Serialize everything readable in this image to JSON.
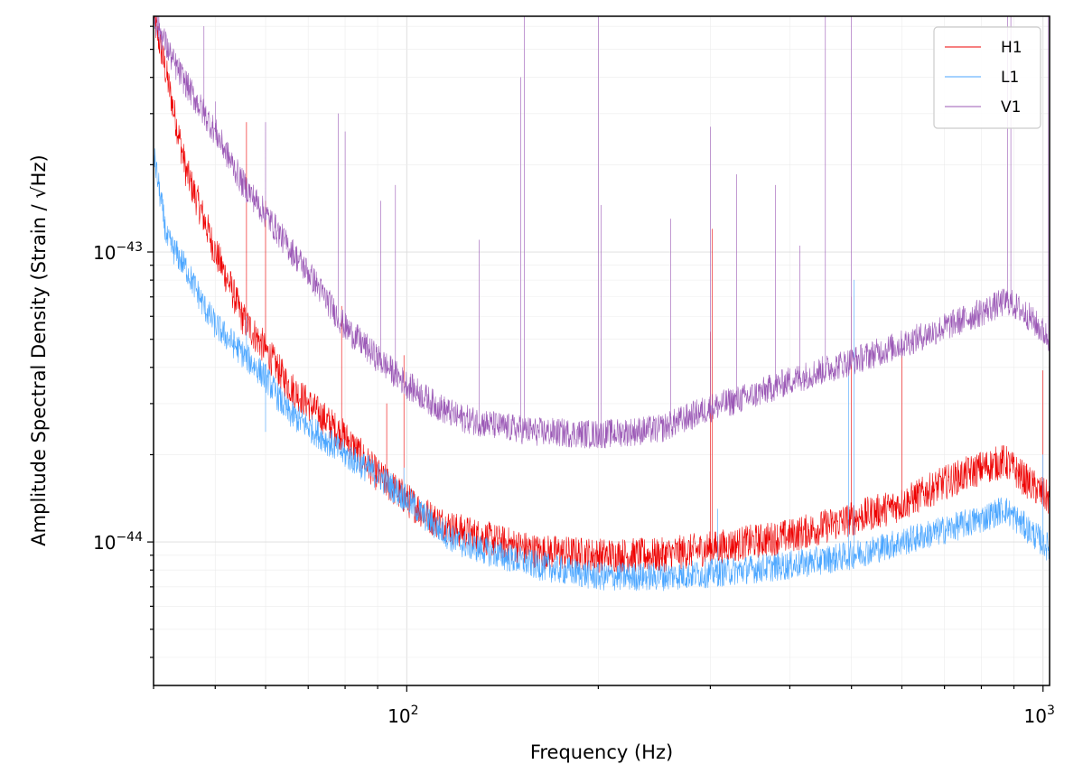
{
  "chart_data": {
    "type": "line",
    "xscale": "log",
    "yscale": "log",
    "xlim": [
      40,
      1024
    ],
    "ylim": [
      3.2e-45,
      6.5e-43
    ],
    "grid": true,
    "legend_position": "top-right",
    "xlabel": "Frequency (Hz)",
    "ylabel": "Amplitude Spectral Density (Strain / √Hz)",
    "x_ticks": [
      {
        "value": 100,
        "base": "10",
        "exp": "2"
      },
      {
        "value": 1000,
        "base": "10",
        "exp": "3"
      }
    ],
    "y_ticks": [
      {
        "value": 1e-44,
        "base": "10",
        "exp": "−44"
      },
      {
        "value": 1e-43,
        "base": "10",
        "exp": "−43"
      }
    ],
    "series": [
      {
        "name": "H1",
        "color": "#ee0000",
        "linewidth": 0.6,
        "noise": 0.06,
        "points": [
          [
            40,
            6.5e-43
          ],
          [
            42,
            4e-43
          ],
          [
            45,
            1.9e-43
          ],
          [
            48,
            1.3e-43
          ],
          [
            50,
            1e-43
          ],
          [
            53,
            7.5e-44
          ],
          [
            55,
            6e-44
          ],
          [
            60,
            4.6e-44
          ],
          [
            65,
            3.5e-44
          ],
          [
            70,
            3e-44
          ],
          [
            75,
            2.6e-44
          ],
          [
            80,
            2.3e-44
          ],
          [
            90,
            1.7e-44
          ],
          [
            100,
            1.4e-44
          ],
          [
            110,
            1.2e-44
          ],
          [
            120,
            1.1e-44
          ],
          [
            140,
            1e-44
          ],
          [
            160,
            9.3e-45
          ],
          [
            200,
            9e-45
          ],
          [
            250,
            9e-45
          ],
          [
            300,
            9.5e-45
          ],
          [
            400,
            1.05e-44
          ],
          [
            500,
            1.2e-44
          ],
          [
            600,
            1.35e-44
          ],
          [
            700,
            1.6e-44
          ],
          [
            800,
            1.8e-44
          ],
          [
            870,
            1.9e-44
          ],
          [
            950,
            1.6e-44
          ],
          [
            1024,
            1.4e-44
          ]
        ],
        "peaks": [
          [
            56,
            2.8e-43
          ],
          [
            60,
            1.5e-43
          ],
          [
            79,
            6.5e-44
          ],
          [
            93,
            3e-44
          ],
          [
            99,
            4.4e-44
          ],
          [
            300,
            5.3e-44
          ],
          [
            302,
            1.2e-43
          ],
          [
            500,
            7e-44
          ],
          [
            600,
            4.5e-44
          ],
          [
            1000,
            3.9e-44
          ]
        ]
      },
      {
        "name": "L1",
        "color": "#4ba6ff",
        "linewidth": 0.6,
        "noise": 0.05,
        "points": [
          [
            40,
            2.2e-43
          ],
          [
            42,
            1.1e-43
          ],
          [
            45,
            8.8e-44
          ],
          [
            48,
            6.5e-44
          ],
          [
            50,
            5.6e-44
          ],
          [
            55,
            4.5e-44
          ],
          [
            60,
            3.7e-44
          ],
          [
            65,
            2.8e-44
          ],
          [
            70,
            2.5e-44
          ],
          [
            80,
            2e-44
          ],
          [
            90,
            1.7e-44
          ],
          [
            100,
            1.4e-44
          ],
          [
            110,
            1.15e-44
          ],
          [
            120,
            1e-44
          ],
          [
            140,
            9e-45
          ],
          [
            160,
            8.3e-45
          ],
          [
            200,
            7.6e-45
          ],
          [
            250,
            7.6e-45
          ],
          [
            300,
            7.8e-45
          ],
          [
            400,
            8.3e-45
          ],
          [
            500,
            9e-45
          ],
          [
            600,
            1e-44
          ],
          [
            700,
            1.1e-44
          ],
          [
            800,
            1.2e-44
          ],
          [
            870,
            1.3e-44
          ],
          [
            950,
            1.1e-44
          ],
          [
            1024,
            9.5e-45
          ]
        ],
        "peaks": [
          [
            56,
            6e-44
          ],
          [
            60,
            2.4e-44
          ],
          [
            99,
            1.8e-44
          ],
          [
            308,
            1.3e-44
          ],
          [
            495,
            4e-44
          ],
          [
            505,
            8e-44
          ],
          [
            1000,
            2e-44
          ]
        ]
      },
      {
        "name": "V1",
        "color": "#9b59b6",
        "linewidth": 0.6,
        "noise": 0.05,
        "points": [
          [
            40,
            6.5e-43
          ],
          [
            43,
            4.5e-43
          ],
          [
            46,
            3.5e-43
          ],
          [
            50,
            2.6e-43
          ],
          [
            55,
            1.75e-43
          ],
          [
            60,
            1.35e-43
          ],
          [
            65,
            1.05e-43
          ],
          [
            70,
            8.5e-44
          ],
          [
            75,
            6.8e-44
          ],
          [
            80,
            5.5e-44
          ],
          [
            90,
            4.3e-44
          ],
          [
            100,
            3.5e-44
          ],
          [
            110,
            3e-44
          ],
          [
            120,
            2.7e-44
          ],
          [
            140,
            2.5e-44
          ],
          [
            160,
            2.4e-44
          ],
          [
            200,
            2.35e-44
          ],
          [
            250,
            2.45e-44
          ],
          [
            300,
            2.9e-44
          ],
          [
            350,
            3.2e-44
          ],
          [
            400,
            3.6e-44
          ],
          [
            500,
            4.2e-44
          ],
          [
            600,
            4.8e-44
          ],
          [
            700,
            5.5e-44
          ],
          [
            800,
            6.2e-44
          ],
          [
            880,
            6.8e-44
          ],
          [
            950,
            6e-44
          ],
          [
            1024,
            5e-44
          ]
        ],
        "peaks": [
          [
            48,
            6e-43
          ],
          [
            50,
            3.3e-43
          ],
          [
            53,
            2e-43
          ],
          [
            60,
            2.8e-43
          ],
          [
            78,
            3e-43
          ],
          [
            80,
            2.6e-43
          ],
          [
            91,
            1.5e-43
          ],
          [
            96,
            1.7e-43
          ],
          [
            130,
            1.1e-43
          ],
          [
            151,
            4e-43
          ],
          [
            153,
            6.5e-43
          ],
          [
            200,
            6.5e-43
          ],
          [
            202,
            1.45e-43
          ],
          [
            260,
            1.3e-43
          ],
          [
            300,
            2.7e-43
          ],
          [
            330,
            1.85e-43
          ],
          [
            380,
            1.7e-43
          ],
          [
            415,
            1.05e-43
          ],
          [
            455,
            6.5e-43
          ],
          [
            500,
            6.5e-43
          ],
          [
            880,
            6.5e-43
          ],
          [
            890,
            6.5e-43
          ],
          [
            1020,
            6.5e-43
          ]
        ]
      }
    ]
  }
}
